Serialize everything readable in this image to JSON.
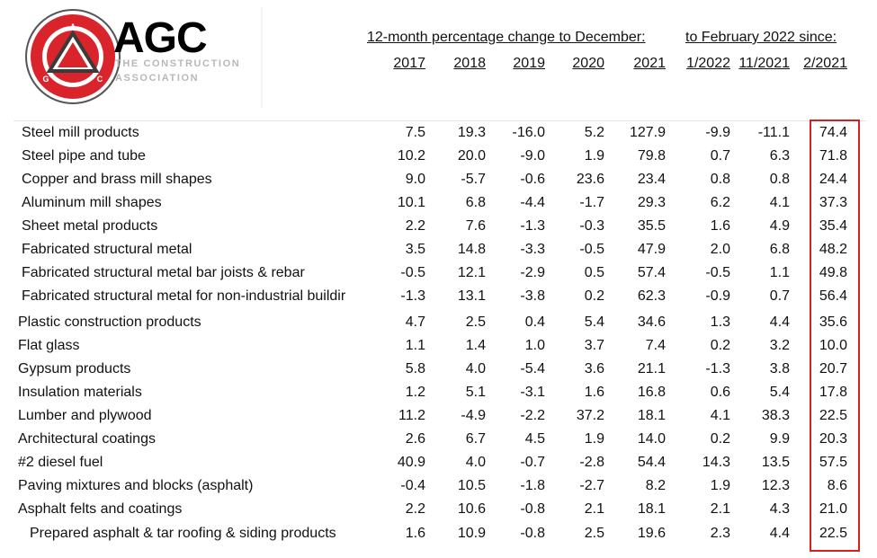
{
  "logo": {
    "wordmark": "AGC",
    "subtitle_line1": "THE CONSTRUCTION",
    "subtitle_line2": "ASSOCIATION",
    "seal_text": "ASSOCIATED GENERAL CONTRACTORS OF AMERICA",
    "seal_letters": [
      "A",
      "G",
      "C"
    ],
    "colors": {
      "seal_red": "#d8242a",
      "seal_dark": "#3a3a3a"
    }
  },
  "headers": {
    "group1": "12-month percentage change to December:",
    "group2": "to February 2022 since:",
    "columns": [
      "2017",
      "2018",
      "2019",
      "2020",
      "2021",
      "1/2022",
      "11/2021",
      "2/2021"
    ]
  },
  "highlight_color": "#d62020",
  "rows": [
    {
      "label": "Steel mill products",
      "values": [
        "7.5",
        "19.3",
        "-16.0",
        "5.2",
        "127.9",
        "-9.9",
        "-11.1",
        "74.4"
      ]
    },
    {
      "label": "Steel pipe and tube",
      "values": [
        "10.2",
        "20.0",
        "-9.0",
        "1.9",
        "79.8",
        "0.7",
        "6.3",
        "71.8"
      ]
    },
    {
      "label": "Copper and brass mill shapes",
      "values": [
        "9.0",
        "-5.7",
        "-0.6",
        "23.6",
        "23.4",
        "0.8",
        "0.8",
        "24.4"
      ]
    },
    {
      "label": "Aluminum mill shapes",
      "values": [
        "10.1",
        "6.8",
        "-4.4",
        "-1.7",
        "29.3",
        "6.2",
        "4.1",
        "37.3"
      ]
    },
    {
      "label": "Sheet metal products",
      "values": [
        "2.2",
        "7.6",
        "-1.3",
        "-0.3",
        "35.5",
        "1.6",
        "4.9",
        "35.4"
      ]
    },
    {
      "label": "Fabricated structural metal",
      "values": [
        "3.5",
        "14.8",
        "-3.3",
        "-0.5",
        "47.9",
        "2.0",
        "6.8",
        "48.2"
      ]
    },
    {
      "label": "Fabricated structural metal bar joists & rebar",
      "values": [
        "-0.5",
        "12.1",
        "-2.9",
        "0.5",
        "57.4",
        "-0.5",
        "1.1",
        "49.8"
      ]
    },
    {
      "label": "Fabricated structural metal for non-industrial buildir",
      "values": [
        "-1.3",
        "13.1",
        "-3.8",
        "0.2",
        "62.3",
        "-0.9",
        "0.7",
        "56.4"
      ]
    },
    {
      "label": "Plastic construction products",
      "values": [
        "4.7",
        "2.5",
        "0.4",
        "5.4",
        "34.6",
        "1.3",
        "4.4",
        "35.6"
      ]
    },
    {
      "label": "Flat glass",
      "values": [
        "1.1",
        "1.4",
        "1.0",
        "3.7",
        "7.4",
        "0.2",
        "3.2",
        "10.0"
      ]
    },
    {
      "label": "Gypsum products",
      "values": [
        "5.8",
        "4.0",
        "-5.4",
        "3.6",
        "21.1",
        "-1.3",
        "3.8",
        "20.7"
      ]
    },
    {
      "label": "Insulation materials",
      "values": [
        "1.2",
        "5.1",
        "-3.1",
        "1.6",
        "16.8",
        "0.6",
        "5.4",
        "17.8"
      ]
    },
    {
      "label": "Lumber and plywood",
      "values": [
        "11.2",
        "-4.9",
        "-2.2",
        "37.2",
        "18.1",
        "4.1",
        "38.3",
        "22.5"
      ]
    },
    {
      "label": "Architectural coatings",
      "values": [
        "2.6",
        "6.7",
        "4.5",
        "1.9",
        "14.0",
        "0.2",
        "9.9",
        "20.3"
      ]
    },
    {
      "label": "#2 diesel fuel",
      "values": [
        "40.9",
        "4.0",
        "-0.7",
        "-2.8",
        "54.4",
        "14.3",
        "13.5",
        "57.5"
      ]
    },
    {
      "label": "Paving mixtures and blocks (asphalt)",
      "values": [
        "-0.4",
        "10.5",
        "-1.8",
        "-2.7",
        "8.2",
        "1.9",
        "12.3",
        "8.6"
      ]
    },
    {
      "label": "Asphalt felts and coatings",
      "values": [
        "2.2",
        "10.6",
        "-0.8",
        "2.1",
        "18.1",
        "2.1",
        "4.3",
        "21.0"
      ]
    },
    {
      "label": "Prepared asphalt & tar roofing & siding products",
      "values": [
        "1.6",
        "10.9",
        "-0.8",
        "2.5",
        "19.6",
        "2.3",
        "4.4",
        "22.5"
      ]
    }
  ]
}
